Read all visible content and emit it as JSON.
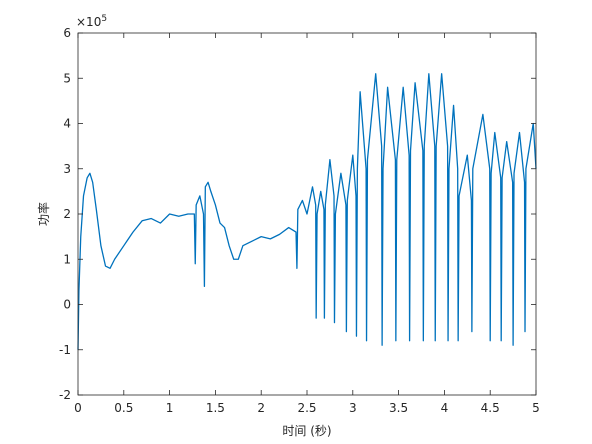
{
  "chart_data": {
    "type": "line",
    "xlabel": "时间 (秒)",
    "ylabel": "功率",
    "y_multiplier": {
      "base": "×10",
      "exponent": "5"
    },
    "color": "#0072BD",
    "xlim": [
      0,
      5
    ],
    "xticks": [
      0,
      0.5,
      1,
      1.5,
      2,
      2.5,
      3,
      3.5,
      4,
      4.5,
      5
    ],
    "ylim": [
      -2,
      6
    ],
    "yticks": [
      -2,
      -1,
      0,
      1,
      2,
      3,
      4,
      5,
      6
    ],
    "x": [
      0,
      0.01,
      0.03,
      0.06,
      0.1,
      0.13,
      0.16,
      0.2,
      0.25,
      0.3,
      0.35,
      0.4,
      0.5,
      0.6,
      0.7,
      0.8,
      0.9,
      1.0,
      1.1,
      1.2,
      1.27,
      1.28,
      1.29,
      1.33,
      1.37,
      1.38,
      1.39,
      1.42,
      1.45,
      1.5,
      1.55,
      1.6,
      1.65,
      1.7,
      1.75,
      1.8,
      1.9,
      2.0,
      2.1,
      2.2,
      2.3,
      2.38,
      2.39,
      2.4,
      2.45,
      2.5,
      2.56,
      2.595,
      2.6,
      2.61,
      2.65,
      2.685,
      2.69,
      2.7,
      2.75,
      2.795,
      2.8,
      2.81,
      2.87,
      2.925,
      2.93,
      2.94,
      3.0,
      3.035,
      3.04,
      3.05,
      3.08,
      3.145,
      3.15,
      3.16,
      3.25,
      3.315,
      3.32,
      3.33,
      3.38,
      3.465,
      3.47,
      3.48,
      3.55,
      3.615,
      3.62,
      3.63,
      3.68,
      3.765,
      3.77,
      3.78,
      3.83,
      3.895,
      3.9,
      3.91,
      3.97,
      4.035,
      4.04,
      4.05,
      4.1,
      4.145,
      4.15,
      4.16,
      4.25,
      4.295,
      4.3,
      4.31,
      4.42,
      4.495,
      4.5,
      4.51,
      4.55,
      4.615,
      4.62,
      4.63,
      4.68,
      4.745,
      4.75,
      4.76,
      4.82,
      4.875,
      4.88,
      4.89,
      4.97,
      5.0
    ],
    "values": [
      -1.0,
      0.3,
      1.5,
      2.4,
      2.8,
      2.9,
      2.7,
      2.1,
      1.3,
      0.85,
      0.8,
      1.0,
      1.3,
      1.6,
      1.85,
      1.9,
      1.8,
      2.0,
      1.95,
      2.0,
      2.0,
      0.9,
      2.2,
      2.4,
      2.0,
      0.4,
      2.6,
      2.7,
      2.5,
      2.2,
      1.8,
      1.7,
      1.3,
      1.0,
      1.0,
      1.3,
      1.4,
      1.5,
      1.45,
      1.55,
      1.7,
      1.6,
      0.8,
      2.1,
      2.3,
      2.0,
      2.6,
      2.2,
      -0.3,
      2.0,
      2.5,
      2.1,
      -0.3,
      2.2,
      3.2,
      2.4,
      -0.4,
      2.0,
      2.9,
      2.2,
      -0.6,
      2.3,
      3.3,
      2.4,
      -0.7,
      3.0,
      4.7,
      3.0,
      -0.8,
      3.2,
      5.1,
      3.5,
      -0.9,
      3.0,
      4.8,
      3.2,
      -0.8,
      3.2,
      4.8,
      3.3,
      -0.8,
      3.4,
      4.9,
      3.4,
      -0.8,
      3.5,
      5.1,
      3.5,
      -0.8,
      3.5,
      5.1,
      3.5,
      -0.8,
      3.0,
      4.4,
      3.0,
      -0.8,
      2.4,
      3.3,
      2.3,
      -0.6,
      3.0,
      4.2,
      3.0,
      -0.8,
      2.9,
      3.8,
      2.8,
      -0.8,
      2.8,
      3.6,
      2.7,
      -0.9,
      2.9,
      3.8,
      2.7,
      -0.6,
      3.0,
      4.0,
      3.0
    ]
  }
}
